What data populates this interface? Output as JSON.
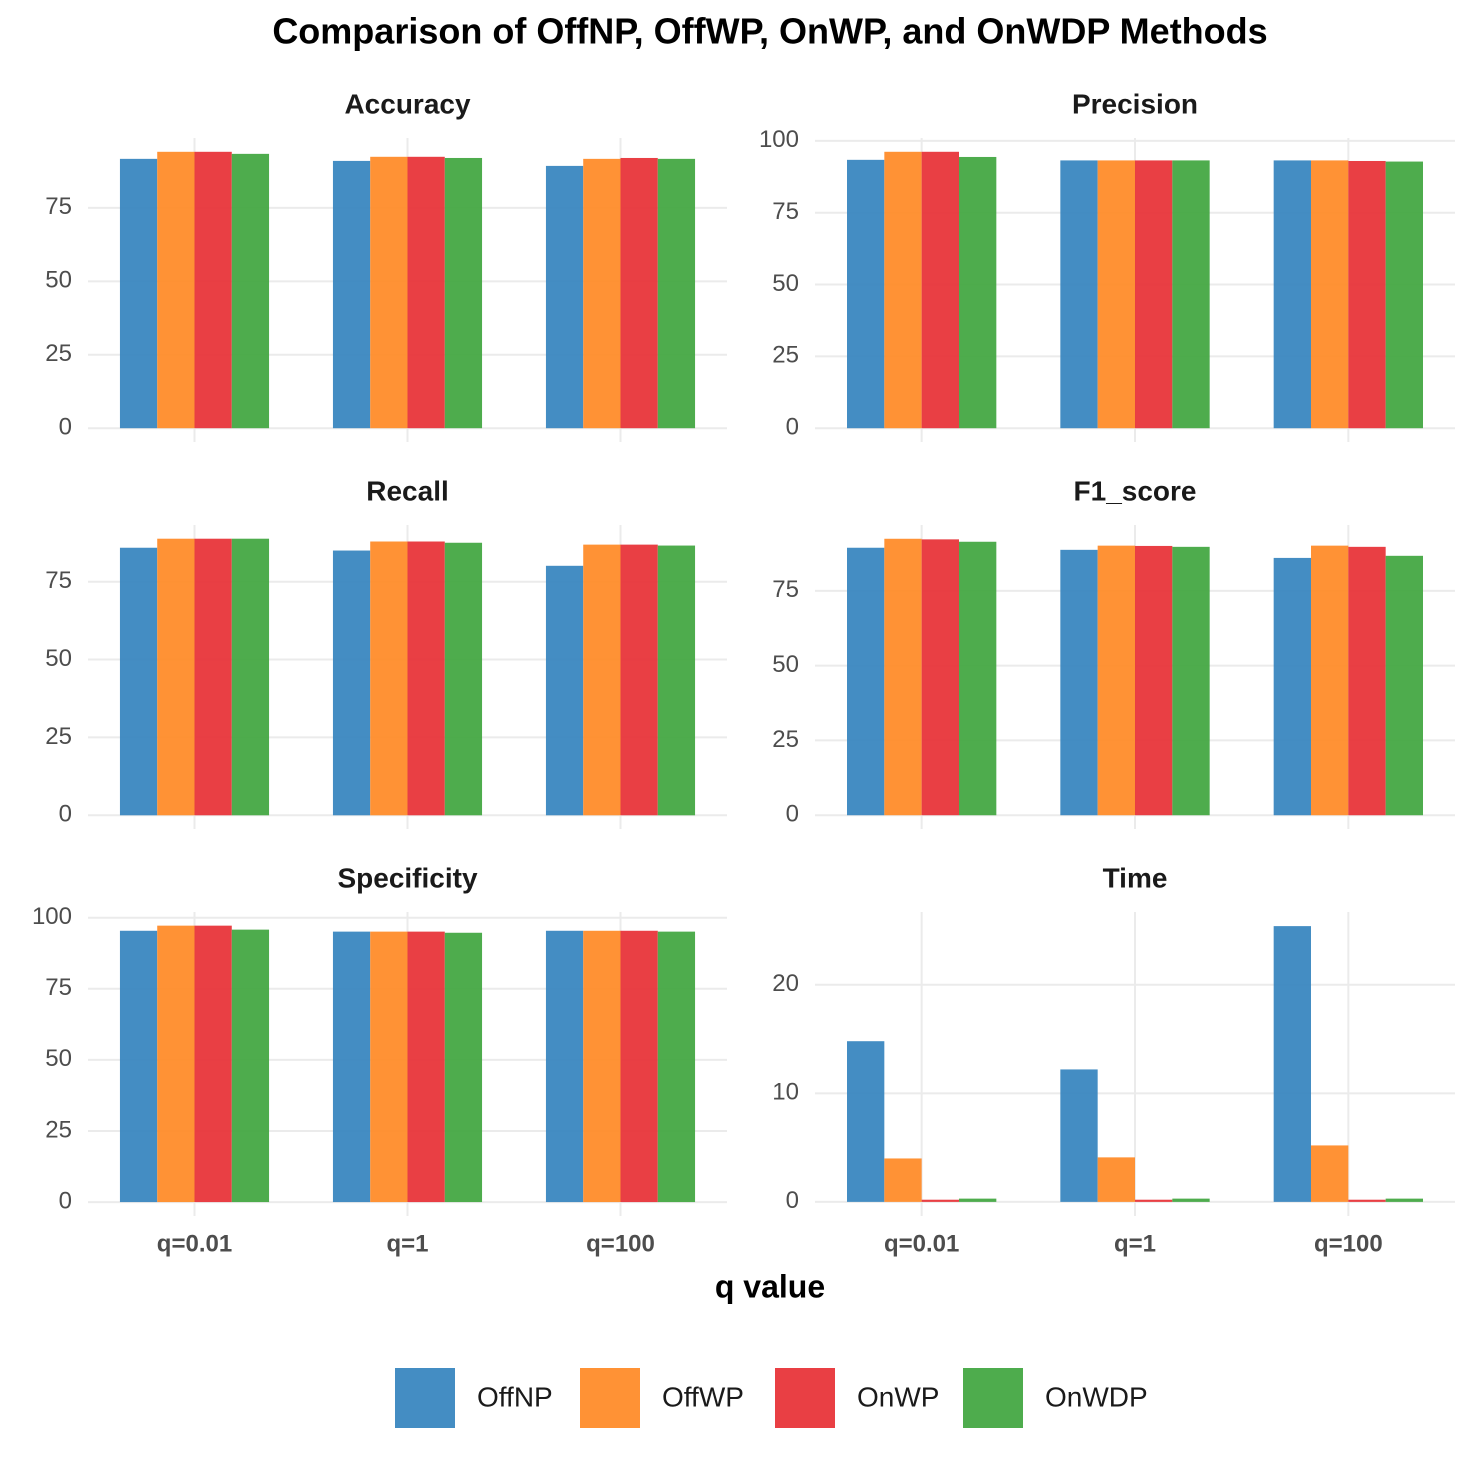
{
  "title": "Comparison of OffNP, OffWP, OnWP, and OnWDP Methods",
  "x_label": "q value",
  "chart_data": [
    {
      "type": "bar",
      "title": "Accuracy",
      "categories": [
        "q=0.01",
        "q=1",
        "q=100"
      ],
      "series": [
        {
          "name": "OffNP",
          "color": "#3a87c0",
          "values": [
            91.7,
            91.0,
            89.3
          ]
        },
        {
          "name": "OffWP",
          "color": "#ff8c2a",
          "values": [
            94.1,
            92.4,
            91.7
          ]
        },
        {
          "name": "OnWP",
          "color": "#e8353a",
          "values": [
            94.1,
            92.4,
            92.0
          ]
        },
        {
          "name": "OnWDP",
          "color": "#45a843",
          "values": [
            93.4,
            92.0,
            91.7
          ]
        }
      ],
      "ylim": [
        -4.7,
        98.8
      ],
      "yticks": [
        0,
        25,
        50,
        75
      ],
      "grid": true
    },
    {
      "type": "bar",
      "title": "Precision",
      "categories": [
        "q=0.01",
        "q=1",
        "q=100"
      ],
      "series": [
        {
          "name": "OffNP",
          "color": "#3a87c0",
          "values": [
            93.4,
            93.2,
            93.2
          ]
        },
        {
          "name": "OffWP",
          "color": "#ff8c2a",
          "values": [
            96.2,
            93.2,
            93.2
          ]
        },
        {
          "name": "OnWP",
          "color": "#e8353a",
          "values": [
            96.2,
            93.2,
            93.0
          ]
        },
        {
          "name": "OnWDP",
          "color": "#45a843",
          "values": [
            94.4,
            93.2,
            92.8
          ]
        }
      ],
      "ylim": [
        -4.8,
        101
      ],
      "yticks": [
        0,
        25,
        50,
        75,
        100
      ],
      "grid": true
    },
    {
      "type": "bar",
      "title": "Recall",
      "categories": [
        "q=0.01",
        "q=1",
        "q=100"
      ],
      "series": [
        {
          "name": "OffNP",
          "color": "#3a87c0",
          "values": [
            85.9,
            85.0,
            80.1
          ]
        },
        {
          "name": "OffWP",
          "color": "#ff8c2a",
          "values": [
            88.8,
            87.9,
            86.9
          ]
        },
        {
          "name": "OnWP",
          "color": "#e8353a",
          "values": [
            88.8,
            87.9,
            86.9
          ]
        },
        {
          "name": "OnWDP",
          "color": "#45a843",
          "values": [
            88.8,
            87.5,
            86.6
          ]
        }
      ],
      "ylim": [
        -4.4,
        93.2
      ],
      "yticks": [
        0,
        25,
        50,
        75
      ],
      "grid": true
    },
    {
      "type": "bar",
      "title": "F1_score",
      "categories": [
        "q=0.01",
        "q=1",
        "q=100"
      ],
      "series": [
        {
          "name": "OffNP",
          "color": "#3a87c0",
          "values": [
            89.4,
            88.7,
            86.0
          ]
        },
        {
          "name": "OffWP",
          "color": "#ff8c2a",
          "values": [
            92.4,
            90.1,
            90.1
          ]
        },
        {
          "name": "OnWP",
          "color": "#e8353a",
          "values": [
            92.2,
            90.0,
            89.7
          ]
        },
        {
          "name": "OnWDP",
          "color": "#45a843",
          "values": [
            91.4,
            89.7,
            86.7
          ]
        }
      ],
      "ylim": [
        -4.6,
        97
      ],
      "yticks": [
        0,
        25,
        50,
        75
      ],
      "grid": true
    },
    {
      "type": "bar",
      "title": "Specificity",
      "categories": [
        "q=0.01",
        "q=1",
        "q=100"
      ],
      "series": [
        {
          "name": "OffNP",
          "color": "#3a87c0",
          "values": [
            95.4,
            95.1,
            95.4
          ]
        },
        {
          "name": "OffWP",
          "color": "#ff8c2a",
          "values": [
            97.2,
            95.1,
            95.4
          ]
        },
        {
          "name": "OnWP",
          "color": "#e8353a",
          "values": [
            97.2,
            95.1,
            95.4
          ]
        },
        {
          "name": "OnWDP",
          "color": "#45a843",
          "values": [
            95.8,
            94.7,
            95.1
          ]
        }
      ],
      "ylim": [
        -4.9,
        102
      ],
      "yticks": [
        0,
        25,
        50,
        75,
        100
      ],
      "grid": true
    },
    {
      "type": "bar",
      "title": "Time",
      "categories": [
        "q=0.01",
        "q=1",
        "q=100"
      ],
      "series": [
        {
          "name": "OffNP",
          "color": "#3a87c0",
          "values": [
            14.8,
            12.2,
            25.4
          ]
        },
        {
          "name": "OffWP",
          "color": "#ff8c2a",
          "values": [
            4.0,
            4.1,
            5.2
          ]
        },
        {
          "name": "OnWP",
          "color": "#e8353a",
          "values": [
            0.2,
            0.2,
            0.2
          ]
        },
        {
          "name": "OnWDP",
          "color": "#45a843",
          "values": [
            0.3,
            0.3,
            0.3
          ]
        }
      ],
      "ylim": [
        -1.3,
        26.7
      ],
      "yticks": [
        0,
        10,
        20
      ],
      "grid": true
    }
  ]
}
